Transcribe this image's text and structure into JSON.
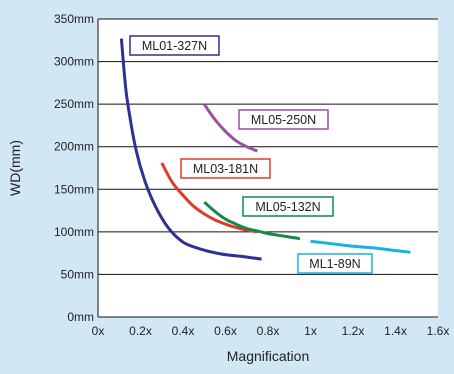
{
  "chart_data": {
    "type": "line",
    "title": "",
    "xlabel": "Magnification",
    "ylabel": "WD(mm)",
    "xlim": [
      0,
      1.6
    ],
    "ylim": [
      0,
      350
    ],
    "x_ticks": [
      0,
      0.2,
      0.4,
      0.6,
      0.8,
      1.0,
      1.2,
      1.4,
      1.6
    ],
    "x_tick_labels": [
      "0x",
      "0.2x",
      "0.4x",
      "0.6x",
      "0.8x",
      "1x",
      "1.2x",
      "1.4x",
      "1.6x"
    ],
    "y_ticks": [
      0,
      50,
      100,
      150,
      200,
      250,
      300,
      350
    ],
    "y_tick_labels": [
      "0mm",
      "50mm",
      "100mm",
      "150mm",
      "200mm",
      "250mm",
      "300mm",
      "350mm"
    ],
    "grid": "horizontal",
    "series": [
      {
        "name": "ML01-327N",
        "color": "#2e3192",
        "x": [
          0.11,
          0.13,
          0.15,
          0.18,
          0.22,
          0.27,
          0.33,
          0.4,
          0.48,
          0.58,
          0.68,
          0.77
        ],
        "y": [
          327,
          270,
          235,
          195,
          160,
          130,
          105,
          88,
          80,
          74,
          71,
          68
        ]
      },
      {
        "name": "ML05-250N",
        "color": "#9b4fa3",
        "x": [
          0.5,
          0.55,
          0.6,
          0.65,
          0.7,
          0.75
        ],
        "y": [
          250,
          232,
          218,
          207,
          200,
          195
        ]
      },
      {
        "name": "ML03-181N",
        "color": "#e03a2b",
        "x": [
          0.3,
          0.35,
          0.4,
          0.45,
          0.5,
          0.55,
          0.6,
          0.65,
          0.7,
          0.75
        ],
        "y": [
          181,
          158,
          143,
          130,
          121,
          114,
          109,
          105,
          102,
          100
        ]
      },
      {
        "name": "ML05-132N",
        "color": "#13894a",
        "x": [
          0.5,
          0.55,
          0.6,
          0.65,
          0.7,
          0.75,
          0.8,
          0.85,
          0.9,
          0.95
        ],
        "y": [
          135,
          124,
          115,
          109,
          104,
          101,
          98,
          96,
          94,
          92
        ]
      },
      {
        "name": "ML1-89N",
        "color": "#19b3e0",
        "x": [
          1.0,
          1.1,
          1.2,
          1.3,
          1.4,
          1.47
        ],
        "y": [
          89,
          86,
          83,
          81,
          78,
          76
        ]
      }
    ],
    "annotations": [
      {
        "text": "ML01-327N",
        "series": 0
      },
      {
        "text": "ML05-250N",
        "series": 1
      },
      {
        "text": "ML03-181N",
        "series": 2
      },
      {
        "text": "ML05-132N",
        "series": 3
      },
      {
        "text": "ML1-89N",
        "series": 4
      }
    ]
  }
}
